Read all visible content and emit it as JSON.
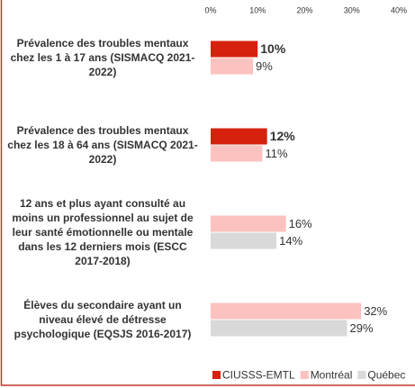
{
  "chart_data": {
    "type": "bar",
    "orientation": "horizontal",
    "categories": [
      "Prévalence des troubles mentaux chez les 1 à 17 ans (SISMACQ 2021-2022)",
      "Prévalence des troubles mentaux chez les 18 à 64 ans (SISMACQ 2021-2022)",
      "12 ans et plus ayant consulté au moins un professionnel au sujet de leur santé émotionnelle ou mentale dans les 12 derniers mois (ESCC 2017-2018)",
      "Élèves du secondaire ayant un niveau élevé de détresse psychologique (EQSJS 2016-2017)"
    ],
    "series": [
      {
        "name": "CIUSSS-EMTL",
        "color": "#d7210f",
        "values": [
          10,
          12,
          null,
          null
        ],
        "value_labels": [
          "10%",
          "12%",
          null,
          null
        ]
      },
      {
        "name": "Montréal",
        "color": "#fbc2bf",
        "values": [
          9,
          11,
          16,
          32
        ],
        "value_labels": [
          "9%",
          "11%",
          "16%",
          "32%"
        ]
      },
      {
        "name": "Québec",
        "color": "#d9d9d9",
        "values": [
          null,
          null,
          14,
          29
        ],
        "value_labels": [
          null,
          null,
          "14%",
          "29%"
        ]
      }
    ],
    "xlim": [
      0,
      40
    ],
    "xticks": [
      {
        "value": 0,
        "label": "0%"
      },
      {
        "value": 10,
        "label": "10%"
      },
      {
        "value": 20,
        "label": "20%"
      },
      {
        "value": 30,
        "label": "30%"
      },
      {
        "value": 40,
        "label": "40%"
      }
    ],
    "grid": false,
    "legend": "bottom"
  }
}
